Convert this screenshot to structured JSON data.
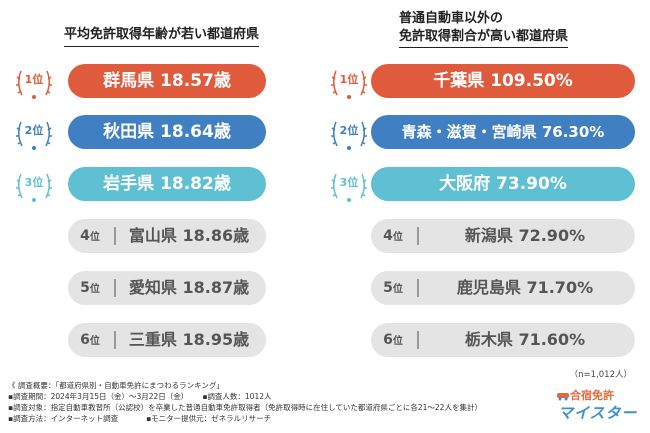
{
  "left": {
    "title": "平均免許取得年齢が若い都道府県",
    "top3": [
      {
        "rank": "1",
        "unit": "位",
        "label": "群馬県 18.57歳",
        "color": "#e05a3c"
      },
      {
        "rank": "2",
        "unit": "位",
        "label": "秋田県 18.64歳",
        "color": "#3f7fc2"
      },
      {
        "rank": "3",
        "unit": "位",
        "label": "岩手県 18.82歳",
        "color": "#5ec0d2"
      }
    ],
    "rest": [
      {
        "rank": "4",
        "unit": "位",
        "label": "富山県 18.86歳"
      },
      {
        "rank": "5",
        "unit": "位",
        "label": "愛知県 18.87歳"
      },
      {
        "rank": "6",
        "unit": "位",
        "label": "三重県 18.95歳"
      }
    ]
  },
  "right": {
    "title_line1": "普通自動車以外の",
    "title_line2": "免許取得割合が高い都道府県",
    "top3": [
      {
        "rank": "1",
        "unit": "位",
        "label": "千葉県 109.50%",
        "color": "#e05a3c"
      },
      {
        "rank": "2",
        "unit": "位",
        "label": "青森・滋賀・宮崎県 76.30%",
        "color": "#3f7fc2"
      },
      {
        "rank": "3",
        "unit": "位",
        "label": "大阪府 73.90%",
        "color": "#5ec0d2"
      }
    ],
    "rest": [
      {
        "rank": "4",
        "unit": "位",
        "label": "新潟県 72.90%"
      },
      {
        "rank": "5",
        "unit": "位",
        "label": "鹿児島県 71.70%"
      },
      {
        "rank": "6",
        "unit": "位",
        "label": "栃木県 71.60%"
      }
    ]
  },
  "sample_note": "（n=1,012人）",
  "notes": {
    "survey": "《 調査概要：「都道府県別・自動車免許にまつわるランキング」",
    "period": "▪調査期間：2024年3月15日（金）〜3月22日（金）",
    "count": "▪調査人数：1012人",
    "target": "▪調査対象：指定自動車教習所（公認校）を卒業した普通自動車免許取得者（免許取得時に在住していた都道府県ごとに各21〜22人を集計）",
    "method": "▪調査方法：インターネット調査",
    "monitor": "▪モニター提供元：ゼネラルリサーチ"
  },
  "logo": {
    "top": "合宿免許",
    "bottom": "マイスター"
  }
}
